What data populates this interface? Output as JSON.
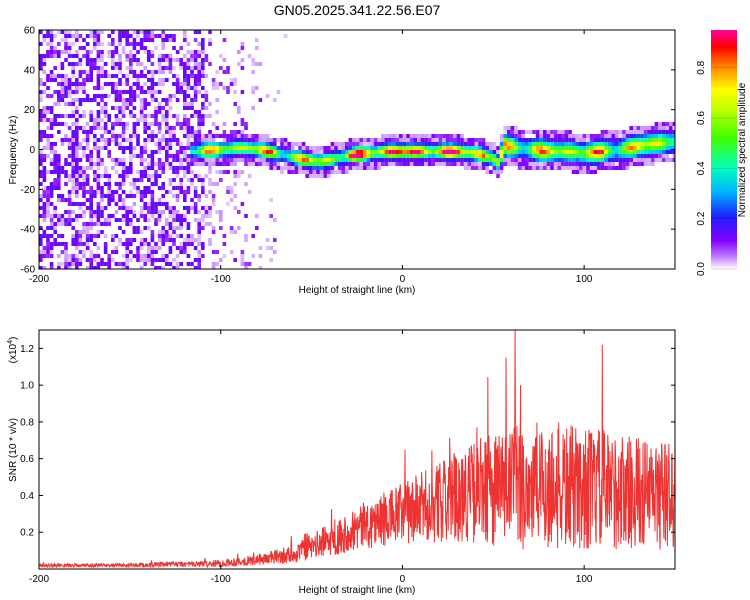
{
  "title": "GN05.2025.341.22.56.E07",
  "chart_data": [
    {
      "type": "heatmap",
      "name": "spectrogram",
      "xlabel": "Height of straight line (km)",
      "ylabel": "Frequency (Hz)",
      "xlim": [
        -200,
        150
      ],
      "ylim": [
        -60,
        60
      ],
      "xticks": [
        -200,
        -100,
        0,
        100
      ],
      "xtick_labels": [
        "-200",
        "-100",
        "0",
        "100"
      ],
      "yticks": [
        -60,
        -40,
        -20,
        0,
        20,
        40,
        60
      ],
      "ytick_labels": [
        "-60",
        "-40",
        "-20",
        "0",
        "20",
        "40",
        "60"
      ],
      "colorbar": {
        "label": "Normalized spectral amplitude",
        "range": [
          0,
          0.95
        ],
        "ticks": [
          0.0,
          0.2,
          0.4,
          0.6,
          0.8
        ],
        "tick_labels": [
          "0.0",
          "0.2",
          "0.4",
          "0.6",
          "0.8"
        ],
        "colors": [
          "#ffffff",
          "#9a00ff",
          "#2020ff",
          "#00c8ff",
          "#00ff80",
          "#80ff00",
          "#ffff00",
          "#ff8000",
          "#ff0000",
          "#ff00a0"
        ]
      },
      "ridge": {
        "x": [
          -115,
          -100,
          -90,
          -80,
          -70,
          -60,
          -50,
          -45,
          -40,
          -30,
          -20,
          -10,
          0,
          10,
          20,
          30,
          40,
          50,
          52,
          55,
          60,
          70,
          80,
          90,
          100,
          110,
          120,
          130,
          140,
          150
        ],
        "y": [
          0,
          1,
          2,
          1,
          -1,
          -3,
          -5,
          -5,
          -4,
          -2,
          -1,
          0,
          0,
          0,
          0,
          0,
          -1,
          -4,
          -6,
          3,
          2,
          1,
          0,
          0,
          -1,
          0,
          1,
          3,
          4,
          5
        ]
      }
    },
    {
      "type": "line",
      "name": "snr",
      "xlabel": "Height of straight line (km)",
      "ylabel": "SNR (10 * v/v)",
      "y_scale_label": "(x10",
      "y_scale_exponent": "4",
      "xlim": [
        -200,
        150
      ],
      "ylim": [
        0,
        1.3
      ],
      "xticks": [
        -200,
        -100,
        0,
        100
      ],
      "xtick_labels": [
        "-200",
        "-100",
        "0",
        "100"
      ],
      "yticks": [
        0.2,
        0.4,
        0.6,
        0.8,
        1.0,
        1.2
      ],
      "ytick_labels": [
        "0.2",
        "0.4",
        "0.6",
        "0.8",
        "1.0",
        "1.2"
      ],
      "color": "#ee3333",
      "envelope": {
        "x": [
          -200,
          -150,
          -100,
          -80,
          -60,
          -50,
          -40,
          -30,
          -20,
          -10,
          0,
          10,
          20,
          30,
          40,
          50,
          60,
          70,
          80,
          90,
          100,
          110,
          120,
          130,
          140,
          150
        ],
        "mean": [
          0.02,
          0.02,
          0.03,
          0.05,
          0.08,
          0.12,
          0.16,
          0.2,
          0.24,
          0.27,
          0.3,
          0.33,
          0.36,
          0.4,
          0.42,
          0.44,
          0.45,
          0.45,
          0.45,
          0.44,
          0.44,
          0.43,
          0.42,
          0.42,
          0.4,
          0.4
        ],
        "spread": [
          0.01,
          0.01,
          0.02,
          0.03,
          0.05,
          0.07,
          0.09,
          0.11,
          0.13,
          0.15,
          0.17,
          0.2,
          0.22,
          0.25,
          0.28,
          0.32,
          0.34,
          0.35,
          0.36,
          0.35,
          0.34,
          0.33,
          0.32,
          0.3,
          0.3,
          0.3
        ]
      },
      "peaks": [
        {
          "x": 62,
          "y": 1.32
        },
        {
          "x": 110,
          "y": 1.22
        },
        {
          "x": 57,
          "y": 1.15
        },
        {
          "x": 65,
          "y": 1.0
        }
      ]
    }
  ]
}
